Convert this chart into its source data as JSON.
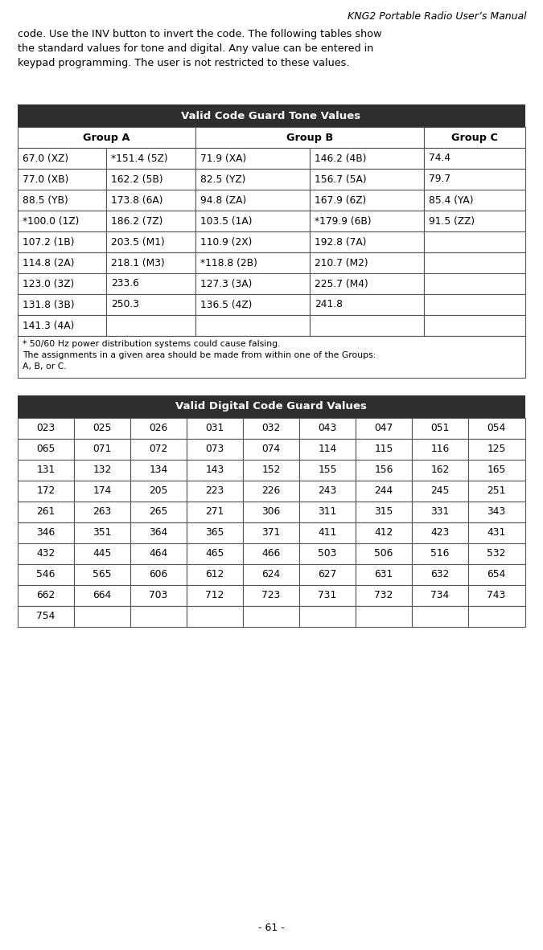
{
  "page_title": "KNG2 Portable Radio User’s Manual",
  "page_number": "- 61 -",
  "intro_text": "code. Use the INV button to invert the code. The following tables show\nthe standard values for tone and digital. Any value can be entered in\nkeypad programming. The user is not restricted to these values.",
  "tone_table_title": "Valid Code Guard Tone Values",
  "tone_rows": [
    [
      "67.0 (XZ)",
      "*151.4 (5Z)",
      "71.9 (XA)",
      "146.2 (4B)",
      "74.4"
    ],
    [
      "77.0 (XB)",
      "162.2 (5B)",
      "82.5 (YZ)",
      "156.7 (5A)",
      "79.7"
    ],
    [
      "88.5 (YB)",
      "173.8 (6A)",
      "94.8 (ZA)",
      "167.9 (6Z)",
      "85.4 (YA)"
    ],
    [
      "*100.0 (1Z)",
      "186.2 (7Z)",
      "103.5 (1A)",
      "*179.9 (6B)",
      "91.5 (ZZ)"
    ],
    [
      "107.2 (1B)",
      "203.5 (M1)",
      "110.9 (2X)",
      "192.8 (7A)",
      ""
    ],
    [
      "114.8 (2A)",
      "218.1 (M3)",
      "*118.8 (2B)",
      "210.7 (M2)",
      ""
    ],
    [
      "123.0 (3Z)",
      "233.6",
      "127.3 (3A)",
      "225.7 (M4)",
      ""
    ],
    [
      "131.8 (3B)",
      "250.3",
      "136.5 (4Z)",
      "241.8",
      ""
    ],
    [
      "141.3 (4A)",
      "",
      "",
      "",
      ""
    ]
  ],
  "tone_footnote": "* 50/60 Hz power distribution systems could cause falsing.\nThe assignments in a given area should be made from within one of the Groups:\nA, B, or C.",
  "digital_table_title": "Valid Digital Code Guard Values",
  "digital_rows": [
    [
      "023",
      "025",
      "026",
      "031",
      "032",
      "043",
      "047",
      "051",
      "054"
    ],
    [
      "065",
      "071",
      "072",
      "073",
      "074",
      "114",
      "115",
      "116",
      "125"
    ],
    [
      "131",
      "132",
      "134",
      "143",
      "152",
      "155",
      "156",
      "162",
      "165"
    ],
    [
      "172",
      "174",
      "205",
      "223",
      "226",
      "243",
      "244",
      "245",
      "251"
    ],
    [
      "261",
      "263",
      "265",
      "271",
      "306",
      "311",
      "315",
      "331",
      "343"
    ],
    [
      "346",
      "351",
      "364",
      "365",
      "371",
      "411",
      "412",
      "423",
      "431"
    ],
    [
      "432",
      "445",
      "464",
      "465",
      "466",
      "503",
      "506",
      "516",
      "532"
    ],
    [
      "546",
      "565",
      "606",
      "612",
      "624",
      "627",
      "631",
      "632",
      "654"
    ],
    [
      "662",
      "664",
      "703",
      "712",
      "723",
      "731",
      "732",
      "734",
      "743"
    ],
    [
      "754",
      "",
      "",
      "",
      "",
      "",
      "",
      "",
      ""
    ]
  ],
  "header_bg": "#2e2e2e",
  "header_fg": "#ffffff",
  "cell_bg": "#ffffff",
  "cell_fg": "#000000",
  "border_color": "#555555",
  "page_bg": "#ffffff"
}
